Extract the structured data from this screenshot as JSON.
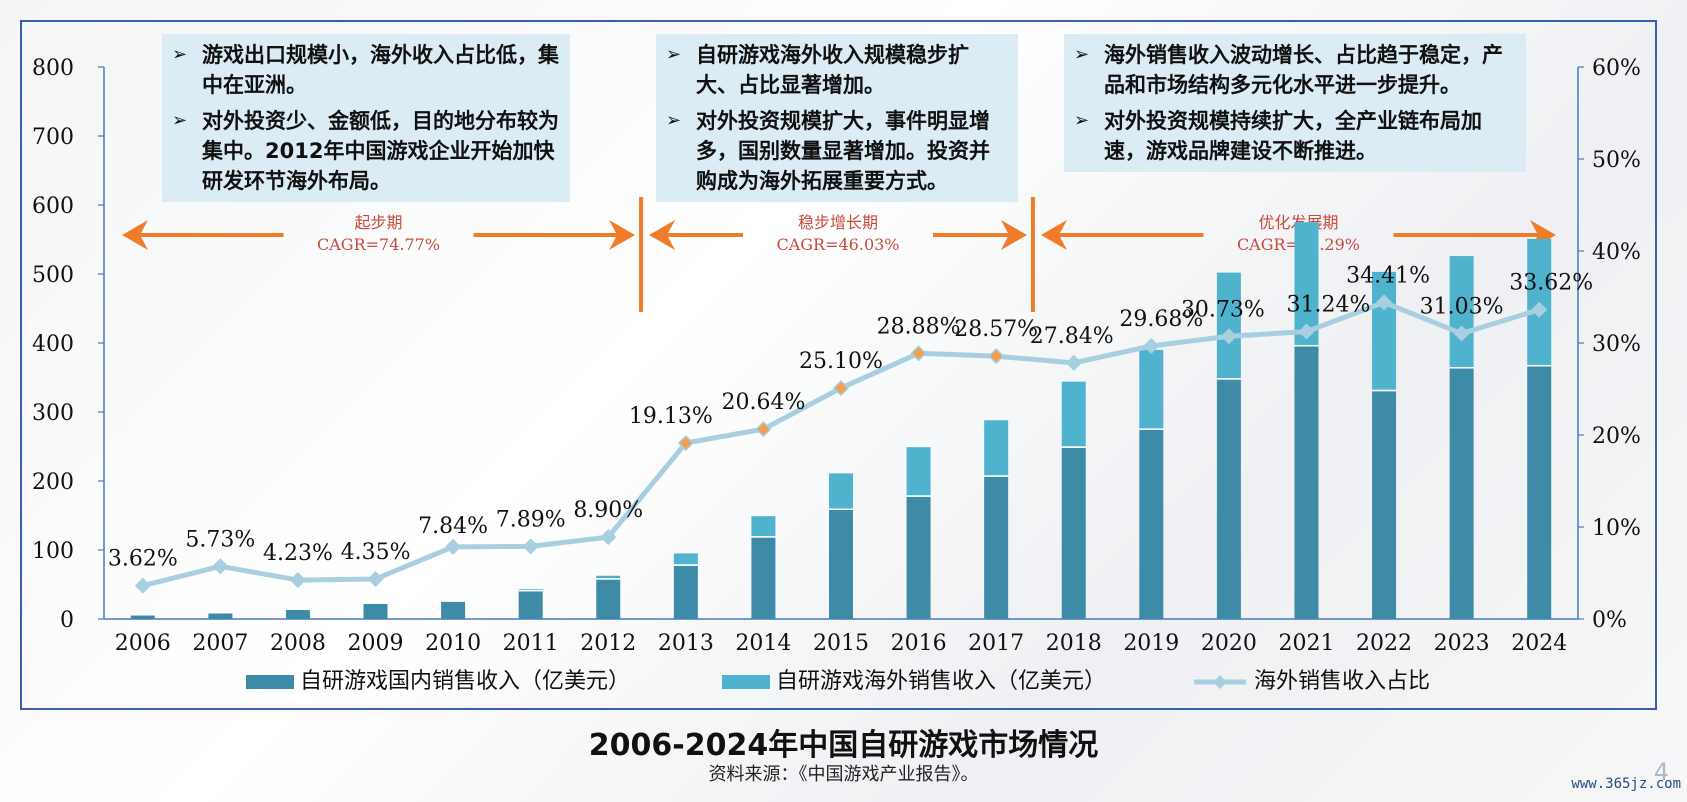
{
  "page_title": "2006-2024年中国自研游戏市场情况",
  "source": "资料来源：《中国游戏产业报告》。",
  "page_number": "4",
  "watermark": "www.365jz.com",
  "notes": [
    {
      "bullets": [
        "游戏出口规模小，海外收入占比低，集中在亚洲。",
        "对外投资少、金额低，目的地分布较为集中。2012年中国游戏企业开始加快研发环节海外布局。"
      ]
    },
    {
      "bullets": [
        "自研游戏海外收入规模稳步扩大、占比显著增加。",
        "对外投资规模扩大，事件明显增多，国别数量显著增加。投资并购成为海外拓展重要方式。"
      ]
    },
    {
      "bullets": [
        "海外销售收入波动增长、占比趋于稳定，产品和市场结构多元化水平进一步提升。",
        "对外投资规模持续扩大，全产业链布局加速，游戏品牌建设不断推进。"
      ]
    }
  ],
  "colors": {
    "domestic": "#3d8ba6",
    "overseas": "#4fb3cd",
    "share_line": "#a8cfe0",
    "phase": "#f07c2a",
    "phase_text": "#c84a3e",
    "frame": "#3b5fae"
  },
  "chart_data": {
    "type": "bar",
    "stacked": true,
    "categories": [
      "2006",
      "2007",
      "2008",
      "2009",
      "2010",
      "2011",
      "2012",
      "2013",
      "2014",
      "2015",
      "2016",
      "2017",
      "2018",
      "2019",
      "2020",
      "2021",
      "2022",
      "2023",
      "2024"
    ],
    "series": [
      {
        "name": "自研游戏国内销售收入（亿美元）",
        "type": "bar",
        "axis": "left",
        "values": [
          5,
          8,
          13,
          22,
          25,
          40,
          57,
          77,
          118,
          158,
          177,
          206,
          248,
          274,
          347,
          395,
          330,
          363,
          366
        ]
      },
      {
        "name": "自研游戏海外销售收入（亿美元）",
        "type": "bar",
        "axis": "left",
        "values": [
          0.2,
          0.5,
          0.6,
          1.0,
          2.1,
          3.4,
          5.7,
          18,
          31,
          53,
          72,
          82,
          96,
          116,
          155,
          180,
          173,
          163,
          185
        ]
      },
      {
        "name": "海外销售收入占比",
        "type": "line",
        "axis": "right",
        "values": [
          3.62,
          5.73,
          4.23,
          4.35,
          7.84,
          7.89,
          8.9,
          19.13,
          20.64,
          25.1,
          28.88,
          28.57,
          27.84,
          29.68,
          30.73,
          31.24,
          34.41,
          31.03,
          33.62
        ],
        "labels": [
          "3.62%",
          "5.73%",
          "4.23%",
          "4.35%",
          "7.84%",
          "7.89%",
          "8.90%",
          "19.13%",
          "20.64%",
          "25.10%",
          "28.88%",
          "28.57%",
          "27.84%",
          "29.68%",
          "30.73%",
          "31.24%",
          "34.41%",
          "31.03%",
          "33.62%"
        ]
      }
    ],
    "y_left": {
      "min": 0,
      "max": 800,
      "ticks": [
        "0",
        "100",
        "200",
        "300",
        "400",
        "500",
        "600",
        "700",
        "800"
      ]
    },
    "y_right": {
      "min": 0,
      "max": 60,
      "ticks": [
        "0%",
        "10%",
        "20%",
        "30%",
        "40%",
        "50%",
        "60%"
      ]
    },
    "legend_position": "bottom",
    "grid": false,
    "phases": [
      {
        "name": "起步期",
        "cagr": "CAGR=74.77%",
        "from": "2006",
        "to": "2012"
      },
      {
        "name": "稳步增长期",
        "cagr": "CAGR=46.03%",
        "from": "2013",
        "to": "2017"
      },
      {
        "name": "优化发展期",
        "cagr": "CAGR=11.29%",
        "from": "2018",
        "to": "2024"
      }
    ]
  }
}
